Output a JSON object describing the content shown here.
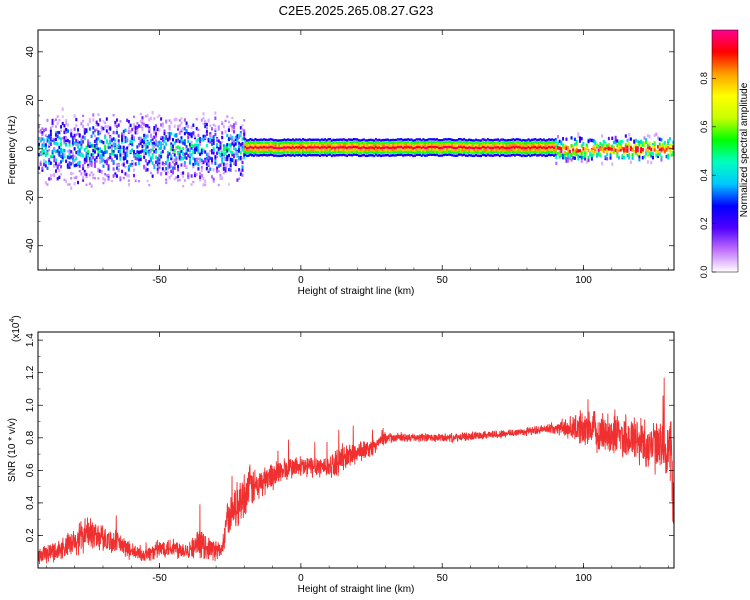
{
  "title": "C2E5.2025.265.08.27.G23",
  "chart_data": [
    {
      "type": "heatmap",
      "name": "spectrogram",
      "xlabel": "Height of straight line (km)",
      "ylabel": "Frequency (Hz)",
      "xlim": [
        -93,
        132
      ],
      "ylim": [
        -50,
        49
      ],
      "xticks": [
        -50,
        0,
        50,
        100
      ],
      "yticks": [
        -40,
        -20,
        0,
        20,
        40
      ],
      "grid": false,
      "colorbar": {
        "label": "Normalized spectral amplitude",
        "range": [
          0,
          1
        ],
        "ticks": [
          "0.0",
          "0.2",
          "0.4",
          "0.6",
          "0.8"
        ],
        "colors": [
          "#ffffff",
          "#c070ff",
          "#5000ff",
          "#0000ff",
          "#00c8ff",
          "#00ffc0",
          "#00ff00",
          "#c8ff00",
          "#ffff00",
          "#ffa000",
          "#ff0000",
          "#ff0090"
        ]
      },
      "segments": [
        {
          "x0": -93,
          "x1": -20,
          "f_center": 0,
          "f_spread": 6,
          "level": 0.35,
          "pattern": "scattered"
        },
        {
          "x0": -20,
          "x1": 90,
          "f_center": 0.5,
          "f_spread": 1.2,
          "level": 0.95,
          "pattern": "line"
        },
        {
          "x0": 90,
          "x1": 132,
          "f_center": 0,
          "f_spread": 2.5,
          "level": 0.8,
          "pattern": "scattered-line"
        }
      ]
    },
    {
      "type": "line",
      "name": "snr",
      "xlabel": "Height of straight line (km)",
      "ylabel": "SNR (10 * v/v)",
      "yscale_label": "(x10",
      "yscale_exp": "4",
      "yscale_close": ")",
      "xlim": [
        -93,
        132
      ],
      "ylim": [
        0,
        1.45
      ],
      "xticks": [
        -50,
        0,
        50,
        100
      ],
      "yticks": [
        "0.2",
        "0.4",
        "0.6",
        "0.8",
        "1.0",
        "1.2",
        "1.4"
      ],
      "series": [
        {
          "color": "#f03030",
          "x": [
            -93,
            -88,
            -84,
            -80,
            -76,
            -72,
            -68,
            -64,
            -60,
            -56,
            -52,
            -48,
            -44,
            -40,
            -36,
            -32,
            -28,
            -26,
            -24,
            -22,
            -20,
            -18,
            -15,
            -12,
            -9,
            -6,
            -3,
            0,
            3,
            6,
            9,
            12,
            15,
            18,
            21,
            24,
            27,
            30,
            35,
            40,
            45,
            50,
            55,
            60,
            65,
            70,
            75,
            80,
            85,
            90,
            95,
            100,
            104,
            108,
            112,
            116,
            120,
            124,
            128,
            131,
            132
          ],
          "y": [
            0.07,
            0.1,
            0.12,
            0.15,
            0.22,
            0.2,
            0.17,
            0.15,
            0.1,
            0.08,
            0.1,
            0.13,
            0.12,
            0.11,
            0.15,
            0.12,
            0.1,
            0.3,
            0.36,
            0.4,
            0.45,
            0.5,
            0.5,
            0.55,
            0.58,
            0.6,
            0.62,
            0.62,
            0.62,
            0.63,
            0.62,
            0.64,
            0.67,
            0.7,
            0.72,
            0.73,
            0.76,
            0.8,
            0.8,
            0.8,
            0.8,
            0.8,
            0.8,
            0.81,
            0.82,
            0.82,
            0.83,
            0.84,
            0.85,
            0.86,
            0.86,
            0.86,
            0.84,
            0.83,
            0.82,
            0.8,
            0.78,
            0.75,
            0.73,
            0.7,
            0.35
          ],
          "noise": [
            0.06,
            0.07,
            0.08,
            0.1,
            0.12,
            0.1,
            0.09,
            0.08,
            0.06,
            0.05,
            0.06,
            0.07,
            0.07,
            0.06,
            0.1,
            0.08,
            0.07,
            0.12,
            0.14,
            0.16,
            0.16,
            0.15,
            0.12,
            0.1,
            0.1,
            0.09,
            0.08,
            0.08,
            0.08,
            0.08,
            0.08,
            0.09,
            0.09,
            0.09,
            0.08,
            0.06,
            0.05,
            0.04,
            0.03,
            0.03,
            0.03,
            0.03,
            0.03,
            0.03,
            0.03,
            0.03,
            0.03,
            0.03,
            0.03,
            0.04,
            0.08,
            0.12,
            0.14,
            0.15,
            0.16,
            0.17,
            0.18,
            0.18,
            0.2,
            0.28,
            0.2
          ]
        }
      ]
    }
  ]
}
